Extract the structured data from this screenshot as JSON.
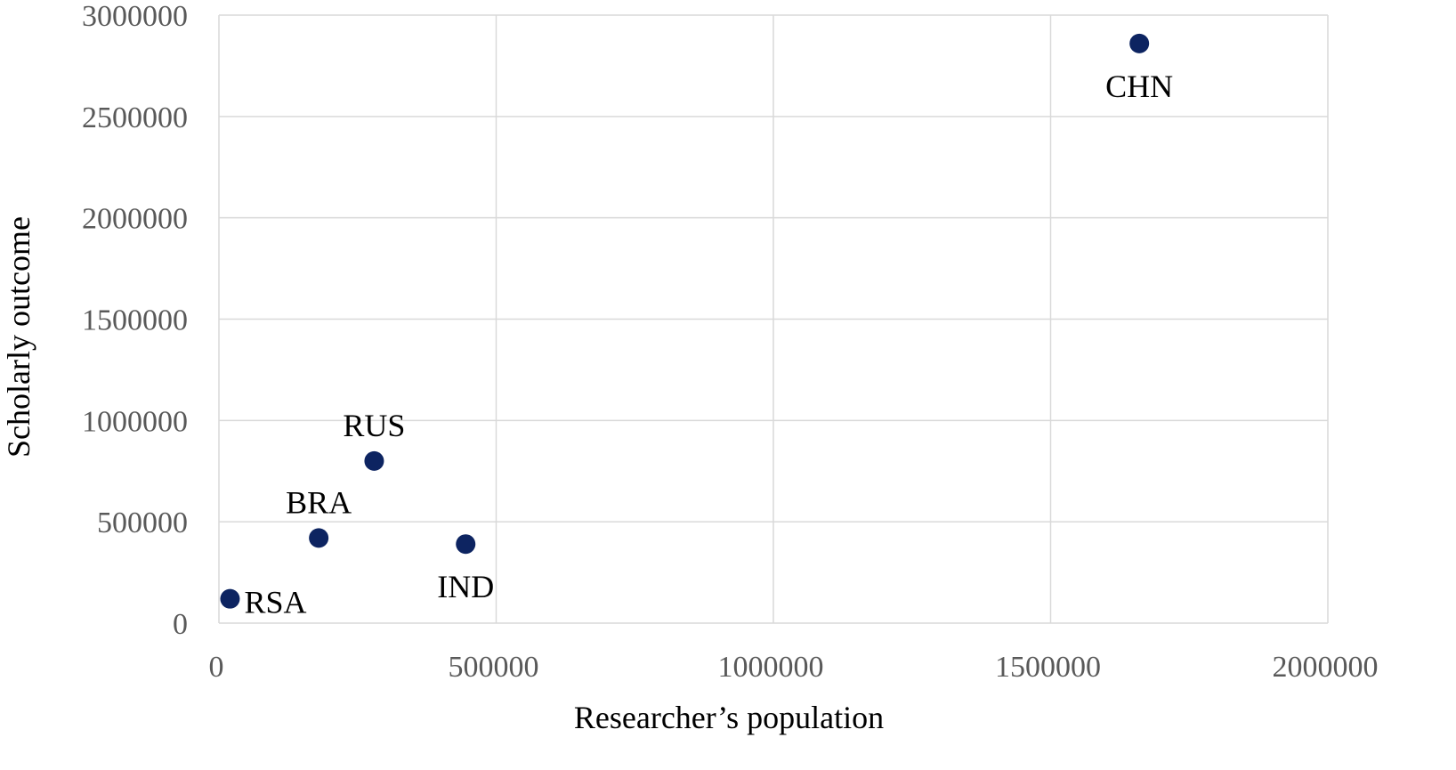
{
  "chart_data": {
    "type": "scatter",
    "title": "",
    "xlabel": "Researcher’s population",
    "ylabel": "Scholarly outcome",
    "xlim": [
      0,
      2000000
    ],
    "ylim": [
      0,
      3000000
    ],
    "xticks": [
      0,
      500000,
      1000000,
      1500000,
      2000000
    ],
    "yticks": [
      0,
      500000,
      1000000,
      1500000,
      2000000,
      2500000,
      3000000
    ],
    "grid": true,
    "legend": "none",
    "marker_color": "#0d2461",
    "points": [
      {
        "label": "RSA",
        "x": 20000,
        "y": 120000,
        "label_pos": "right"
      },
      {
        "label": "BRA",
        "x": 180000,
        "y": 420000,
        "label_pos": "above"
      },
      {
        "label": "RUS",
        "x": 280000,
        "y": 800000,
        "label_pos": "above"
      },
      {
        "label": "IND",
        "x": 445000,
        "y": 390000,
        "label_pos": "below"
      },
      {
        "label": "CHN",
        "x": 1660000,
        "y": 2860000,
        "label_pos": "below"
      }
    ]
  }
}
